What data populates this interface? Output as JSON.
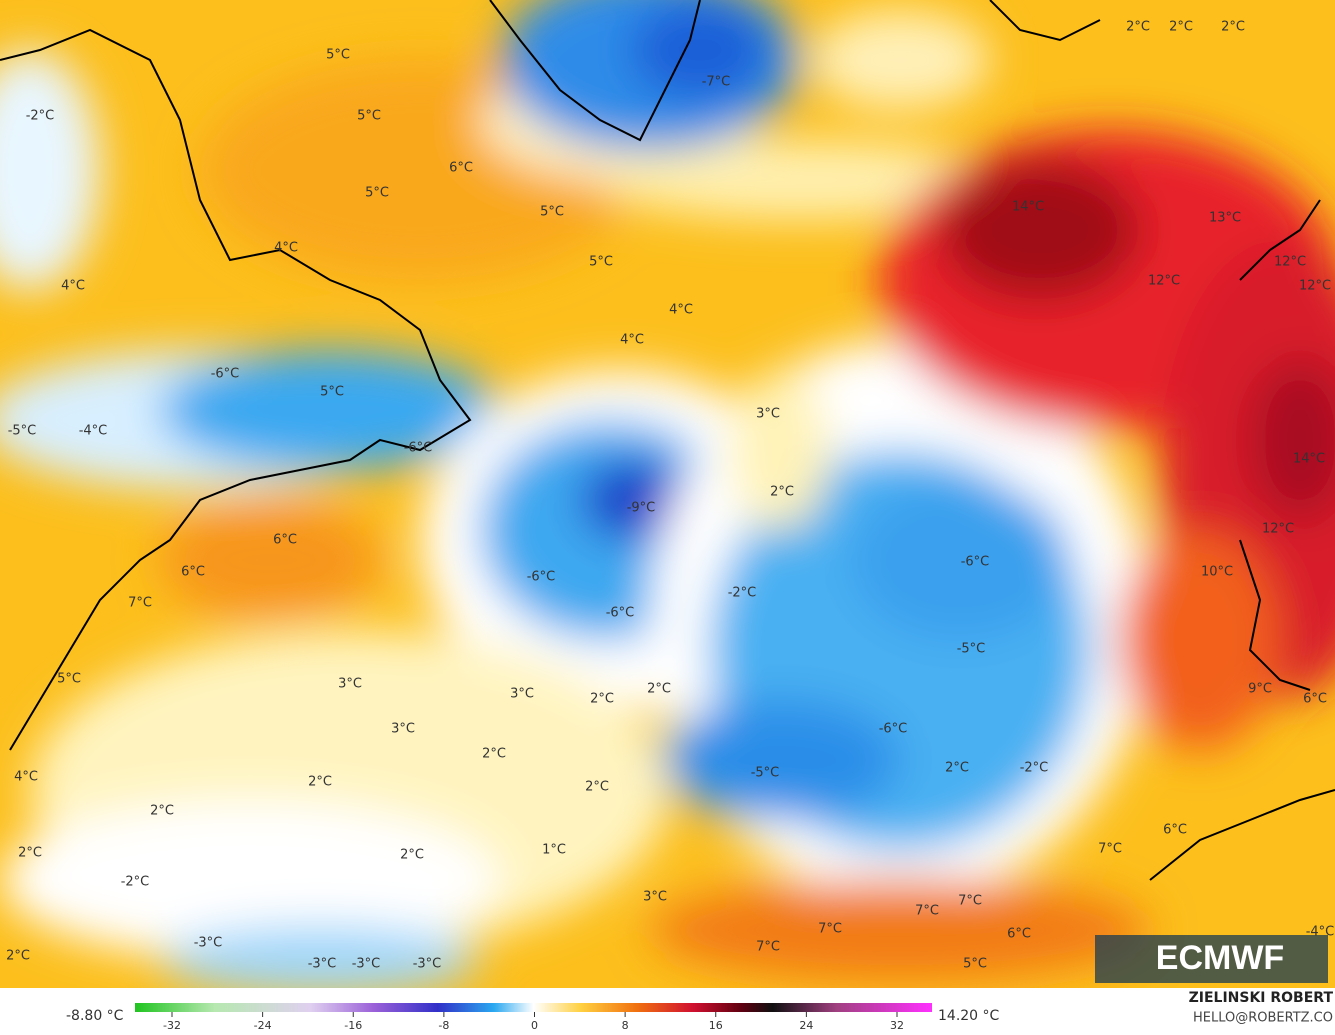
{
  "map": {
    "labels": [
      "5°C",
      "5°C",
      "-2°C",
      "6°C",
      "5°C",
      "5°C",
      "4°C",
      "5°C",
      "4°C",
      "4°C",
      "4°C",
      "-6°C",
      "5°C",
      "-5°C",
      "-4°C",
      "-6°C",
      "3°C",
      "2°C",
      "-9°C",
      "6°C",
      "6°C",
      "-6°C",
      "-2°C",
      "-6°C",
      "-6°C",
      "7°C",
      "-5°C",
      "3°C",
      "3°C",
      "2°C",
      "2°C",
      "5°C",
      "3°C",
      "2°C",
      "-6°C",
      "2°C",
      "4°C",
      "2°C",
      "-5°C",
      "2°C",
      "-2°C",
      "2°C",
      "2°C",
      "2°C",
      "1°C",
      "-2°C",
      "3°C",
      "-3°C",
      "-3°C",
      "-3°C",
      "-3°C",
      "2°C",
      "7°C",
      "7°C",
      "7°C",
      "7°C",
      "6°C",
      "5°C",
      "7°C",
      "6°C",
      "9°C",
      "6°C",
      "10°C",
      "12°C",
      "14°C",
      "14°C",
      "13°C",
      "12°C",
      "12°C",
      "12°C",
      "-7°C",
      "2°C",
      "2°C",
      "2°C",
      "-4°C"
    ],
    "colorbar": {
      "min_label": "-8.80 °C",
      "max_label": "14.20 °C",
      "range": [
        -32,
        32
      ],
      "ticks": [
        -32,
        -24,
        -16,
        -8,
        0,
        8,
        16,
        24,
        32
      ]
    },
    "credits": {
      "author": "ZIELINSKI ROBERT",
      "contact": "HELLO@ROBERTZ.CO",
      "logo": "ECMWF"
    }
  }
}
